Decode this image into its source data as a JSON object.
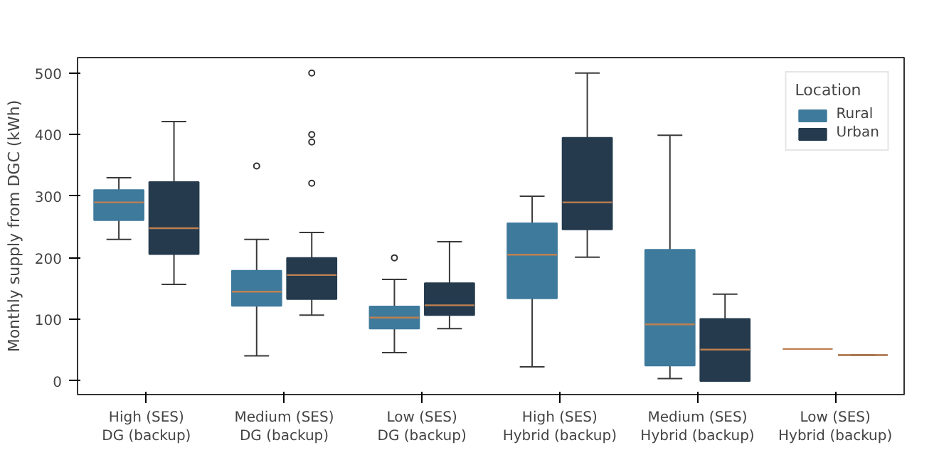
{
  "chart_data": {
    "type": "box",
    "ylabel": "Monthly supply from DGC (kWh)",
    "legend_title": "Location",
    "legend": "top right",
    "grid": false,
    "categories": [
      "High (SES)\nDG (backup)",
      "Medium (SES)\nDG (backup)",
      "Low (SES)\nDG (backup)",
      "High (SES)\nHybrid (backup)",
      "Medium (SES)\nHybrid (backup)",
      "Low (SES)\nHybrid (backup)"
    ],
    "ylim": [
      -22,
      525
    ],
    "yticks": [
      0,
      100,
      200,
      300,
      400,
      500
    ],
    "series": [
      {
        "name": "Rural",
        "color": "#3e7a9c",
        "boxes": [
          {
            "low": 230,
            "q1": 261,
            "median": 290,
            "q3": 310,
            "high": 330
          },
          {
            "low": 41,
            "q1": 122,
            "median": 145,
            "q3": 179,
            "high": 230,
            "outliers": [
              349
            ]
          },
          {
            "low": 46,
            "q1": 85,
            "median": 103,
            "q3": 121,
            "high": 165,
            "outliers": [
              200
            ]
          },
          {
            "low": 23,
            "q1": 134,
            "median": 205,
            "q3": 256,
            "high": 300
          },
          {
            "low": 4,
            "q1": 25,
            "median": 92,
            "q3": 213,
            "high": 399
          },
          {
            "low": 52,
            "q1": 52,
            "median": 52,
            "q3": 52,
            "high": 52
          }
        ]
      },
      {
        "name": "Urban",
        "color": "#253b4d",
        "boxes": [
          {
            "low": 157,
            "q1": 206,
            "median": 248,
            "q3": 323,
            "high": 421
          },
          {
            "low": 107,
            "q1": 133,
            "median": 172,
            "q3": 200,
            "high": 241,
            "outliers": [
              321,
              388,
              400,
              500
            ]
          },
          {
            "low": 85,
            "q1": 107,
            "median": 123,
            "q3": 159,
            "high": 226
          },
          {
            "low": 201,
            "q1": 246,
            "median": 290,
            "q3": 395,
            "high": 500
          },
          {
            "low": 0,
            "q1": 0,
            "median": 51,
            "q3": 101,
            "high": 141
          },
          {
            "low": 42,
            "q1": 42,
            "median": 42,
            "q3": 42,
            "high": 42
          }
        ]
      }
    ]
  }
}
